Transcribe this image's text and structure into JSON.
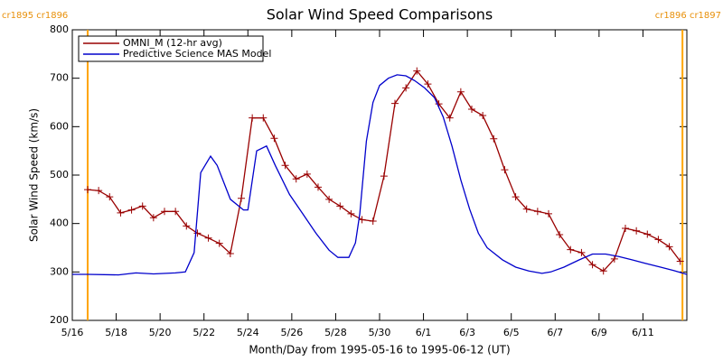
{
  "chart_data": {
    "type": "line",
    "title": "Solar Wind Speed Comparisons",
    "xlabel": "Month/Day from 1995-05-16 to 1995-06-12 (UT)",
    "ylabel": "Solar Wind Speed (km/s)",
    "xlim": [
      0,
      28
    ],
    "ylim": [
      200,
      800
    ],
    "yticks": [
      200,
      300,
      400,
      500,
      600,
      700,
      800
    ],
    "xticks": [
      {
        "value": 0,
        "label": "5/16"
      },
      {
        "value": 2,
        "label": "5/18"
      },
      {
        "value": 4,
        "label": "5/20"
      },
      {
        "value": 6,
        "label": "5/22"
      },
      {
        "value": 8,
        "label": "5/24"
      },
      {
        "value": 10,
        "label": "5/26"
      },
      {
        "value": 12,
        "label": "5/28"
      },
      {
        "value": 14,
        "label": "5/30"
      },
      {
        "value": 16,
        "label": "6/1"
      },
      {
        "value": 18,
        "label": "6/3"
      },
      {
        "value": 20,
        "label": "6/5"
      },
      {
        "value": 22,
        "label": "6/7"
      },
      {
        "value": 24,
        "label": "6/9"
      },
      {
        "value": 26,
        "label": "6/11"
      }
    ],
    "boundaries": [
      {
        "x": 0.7,
        "label": "cr1895 cr1896",
        "color": "#ffa500"
      },
      {
        "x": 27.8,
        "label": "cr1896 cr1897",
        "color": "#ffa500"
      }
    ],
    "legend": "upper left",
    "series": [
      {
        "name": "OMNI_M (12-hr avg)",
        "color": "#990000",
        "marker": "+",
        "x": [
          0.7,
          1.2,
          1.7,
          2.2,
          2.7,
          3.2,
          3.7,
          4.2,
          4.7,
          5.2,
          5.7,
          6.2,
          6.7,
          7.2,
          7.7,
          8.2,
          8.7,
          9.2,
          9.7,
          10.2,
          10.7,
          11.2,
          11.7,
          12.2,
          12.7,
          13.2,
          13.7,
          14.2,
          14.7,
          15.2,
          15.7,
          16.2,
          16.7,
          17.2,
          17.7,
          18.2,
          18.7,
          19.2,
          19.7,
          20.2,
          20.7,
          21.2,
          21.7,
          22.2,
          22.7,
          23.2,
          23.7,
          24.2,
          24.7,
          25.2,
          25.7,
          26.2,
          26.7,
          27.2,
          27.7
        ],
        "values": [
          470,
          468,
          455,
          422,
          428,
          436,
          412,
          425,
          425,
          395,
          380,
          370,
          359,
          338,
          452,
          618,
          618,
          576,
          520,
          492,
          502,
          475,
          450,
          436,
          420,
          408,
          405,
          498,
          648,
          680,
          715,
          688,
          647,
          618,
          672,
          636,
          623,
          575,
          511,
          455,
          430,
          425,
          420,
          377,
          346,
          340,
          315,
          302,
          327,
          390,
          385,
          378,
          367,
          352,
          322
        ]
      },
      {
        "name": "Predictive Science MAS Model",
        "color": "#0000cc",
        "x": [
          0,
          0.7,
          2.1,
          2.9,
          3.7,
          4.7,
          5.15,
          5.55,
          5.85,
          6.3,
          6.6,
          7.2,
          7.8,
          8.0,
          8.4,
          8.85,
          9.25,
          9.9,
          10.5,
          11.1,
          11.7,
          12.1,
          12.6,
          12.9,
          13.1,
          13.4,
          13.7,
          14.0,
          14.4,
          14.8,
          15.2,
          15.6,
          16.05,
          16.5,
          16.9,
          17.3,
          17.7,
          18.1,
          18.5,
          18.9,
          19.6,
          20.2,
          20.8,
          21.4,
          21.8,
          22.4,
          23.1,
          23.7,
          24.3,
          24.9,
          25.5,
          26.1,
          26.8,
          27.4,
          28.0
        ],
        "values": [
          295,
          295,
          294,
          298,
          296,
          298,
          300,
          340,
          505,
          539,
          520,
          450,
          428,
          428,
          550,
          560,
          520,
          460,
          420,
          380,
          345,
          330,
          330,
          360,
          420,
          570,
          650,
          685,
          700,
          707,
          705,
          695,
          680,
          660,
          620,
          560,
          490,
          430,
          380,
          350,
          325,
          310,
          302,
          297,
          300,
          310,
          325,
          337,
          337,
          332,
          325,
          318,
          310,
          303,
          295
        ]
      }
    ]
  }
}
